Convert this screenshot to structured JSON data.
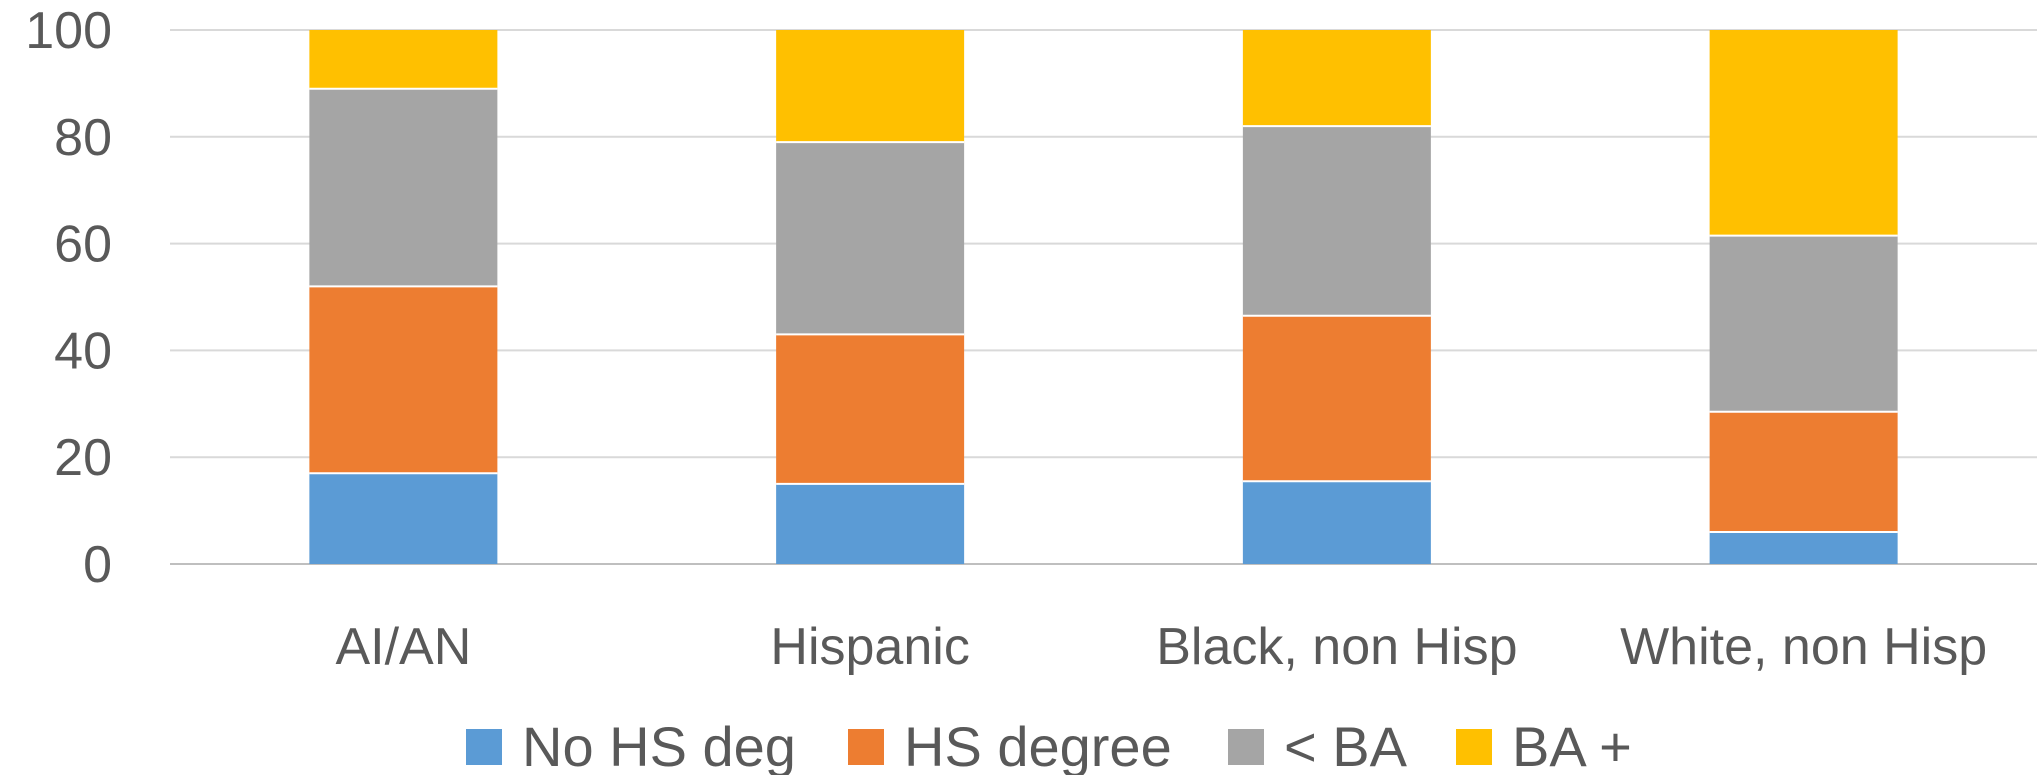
{
  "chart_data": {
    "type": "bar",
    "stacked": true,
    "categories": [
      "AI/AN",
      "Hispanic",
      "Black, non Hisp",
      "White, non Hisp"
    ],
    "series": [
      {
        "name": "No HS deg",
        "color": "#5B9BD5",
        "values": [
          17,
          15,
          15.5,
          6
        ]
      },
      {
        "name": "HS degree",
        "color": "#ED7D31",
        "values": [
          35,
          28,
          31,
          22.5
        ]
      },
      {
        "name": "< BA",
        "color": "#A5A5A5",
        "values": [
          37,
          36,
          35.5,
          33
        ]
      },
      {
        "name": "BA +",
        "color": "#FFC000",
        "values": [
          11,
          21,
          18,
          38.5
        ]
      }
    ],
    "yticks": [
      "0",
      "20",
      "40",
      "60",
      "80",
      "100"
    ],
    "ylim": [
      0,
      100
    ],
    "grid": true,
    "legend_position": "bottom",
    "title": "",
    "xlabel": "",
    "ylabel": ""
  }
}
